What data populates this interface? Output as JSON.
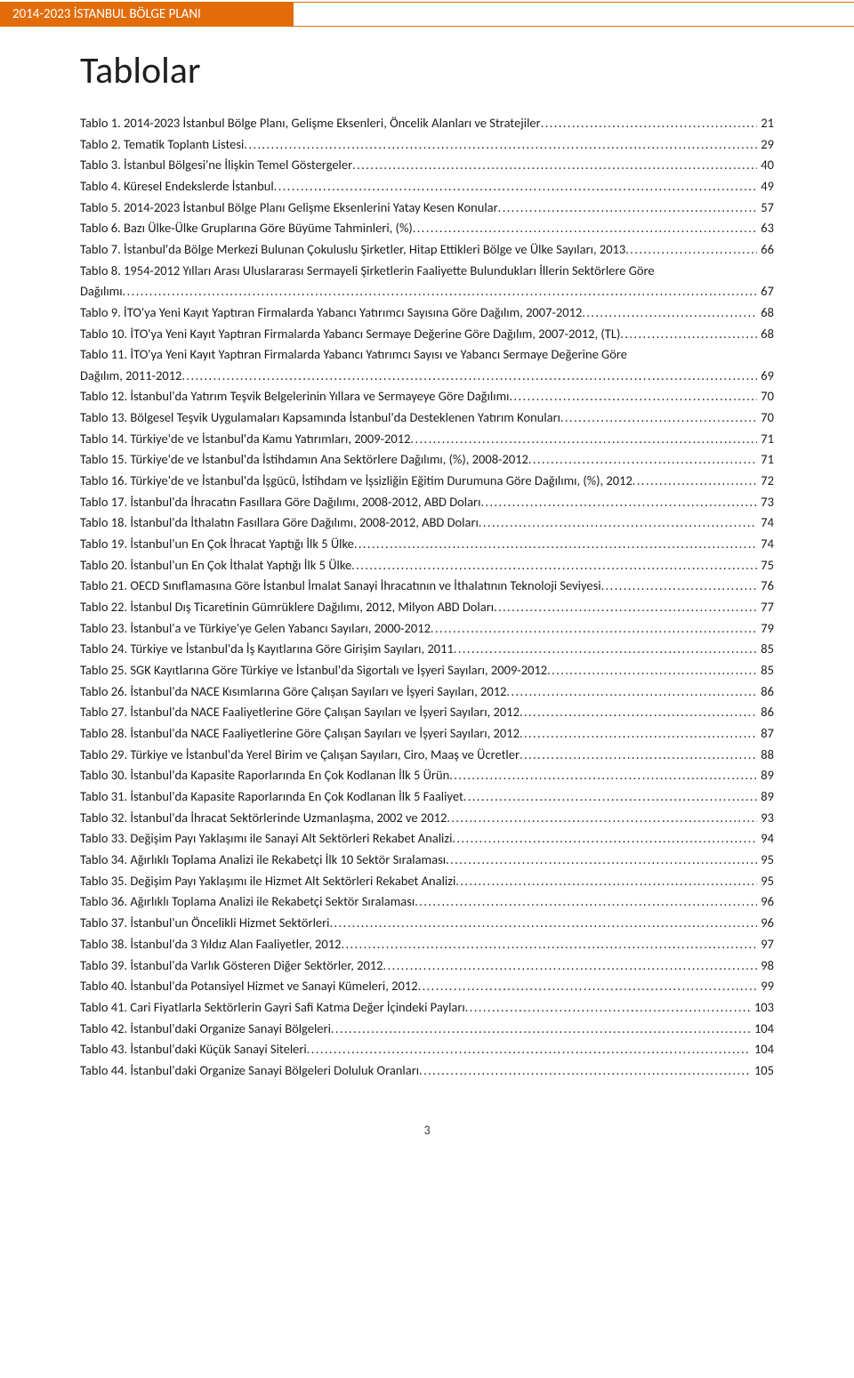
{
  "header": {
    "title": "2014-2023 İSTANBUL BÖLGE PLANI"
  },
  "main_title": "Tablolar",
  "page_number": "3",
  "colors": {
    "header_bg": "#e36c0a",
    "header_text": "#ffffff",
    "body_text": "#1a1a1a",
    "background": "#ffffff"
  },
  "toc": [
    {
      "label": "Tablo 1. 2014-2023 İstanbul Bölge Planı, Gelişme Eksenleri, Öncelik Alanları ve Stratejiler",
      "page": "21"
    },
    {
      "label": "Tablo 2. Tematik Toplantı Listesi",
      "page": "29"
    },
    {
      "label": "Tablo 3. İstanbul Bölgesi'ne İlişkin Temel Göstergeler",
      "page": "40"
    },
    {
      "label": "Tablo 4. Küresel Endekslerde İstanbul",
      "page": "49"
    },
    {
      "label": "Tablo 5. 2014-2023 İstanbul Bölge Planı Gelişme Eksenlerini Yatay Kesen Konular",
      "page": "57"
    },
    {
      "label": "Tablo 6. Bazı Ülke-Ülke Gruplarına Göre Büyüme Tahminleri, (%)",
      "page": "63"
    },
    {
      "label": "Tablo 7. İstanbul'da Bölge Merkezi Bulunan Çokuluslu Şirketler, Hitap Ettikleri Bölge ve Ülke Sayıları, 2013",
      "page": "66"
    },
    {
      "label_pre": "Tablo 8. 1954-2012 Yılları Arası Uluslararası Sermayeli Şirketlerin Faaliyette Bulundukları İllerin Sektörlere Göre",
      "label": "Dağılımı",
      "page": "67",
      "multiline": true
    },
    {
      "label": "Tablo 9. İTO'ya Yeni Kayıt Yaptıran Firmalarda Yabancı Yatırımcı Sayısına Göre Dağılım, 2007-2012",
      "page": "68"
    },
    {
      "label": "Tablo 10. İTO'ya Yeni Kayıt Yaptıran Firmalarda Yabancı Sermaye Değerine Göre Dağılım, 2007-2012, (TL)",
      "page": "68"
    },
    {
      "label_pre": "Tablo 11. İTO'ya Yeni Kayıt Yaptıran Firmalarda Yabancı Yatırımcı Sayısı ve Yabancı Sermaye Değerine Göre",
      "label": "Dağılım, 2011-2012",
      "page": "69",
      "multiline": true
    },
    {
      "label": "Tablo 12. İstanbul'da Yatırım Teşvik Belgelerinin Yıllara ve Sermayeye Göre Dağılımı",
      "page": "70"
    },
    {
      "label": "Tablo 13. Bölgesel Teşvik Uygulamaları Kapsamında İstanbul'da Desteklenen Yatırım Konuları",
      "page": "70"
    },
    {
      "label": "Tablo 14. Türkiye'de ve İstanbul'da Kamu Yatırımları, 2009-2012",
      "page": "71"
    },
    {
      "label": "Tablo 15. Türkiye'de ve İstanbul'da İstihdamın Ana Sektörlere Dağılımı, (%), 2008-2012",
      "page": "71"
    },
    {
      "label": "Tablo 16. Türkiye'de ve İstanbul'da İşgücü, İstihdam ve İşsizliğin Eğitim Durumuna Göre Dağılımı, (%), 2012",
      "page": "72"
    },
    {
      "label": "Tablo 17. İstanbul'da İhracatın Fasıllara Göre Dağılımı, 2008-2012, ABD Doları",
      "page": "73"
    },
    {
      "label": "Tablo 18. İstanbul'da İthalatın Fasıllara Göre Dağılımı, 2008-2012, ABD Doları",
      "page": "74"
    },
    {
      "label": "Tablo 19. İstanbul'un En Çok İhracat Yaptığı İlk 5 Ülke",
      "page": "74"
    },
    {
      "label": "Tablo 20. İstanbul'un En Çok İthalat Yaptığı İlk 5 Ülke",
      "page": "75"
    },
    {
      "label": "Tablo 21. OECD Sınıflamasına Göre İstanbul İmalat Sanayi İhracatının ve İthalatının Teknoloji Seviyesi",
      "page": "76"
    },
    {
      "label": "Tablo 22. İstanbul Dış Ticaretinin Gümrüklere Dağılımı, 2012, Milyon ABD Doları",
      "page": "77"
    },
    {
      "label": "Tablo 23. İstanbul'a ve Türkiye'ye Gelen Yabancı Sayıları, 2000-2012",
      "page": "79"
    },
    {
      "label": "Tablo 24. Türkiye ve İstanbul'da İş Kayıtlarına Göre Girişim Sayıları, 2011",
      "page": "85"
    },
    {
      "label": "Tablo 25. SGK Kayıtlarına Göre Türkiye ve İstanbul'da Sigortalı ve İşyeri Sayıları, 2009-2012",
      "page": "85"
    },
    {
      "label": "Tablo 26. İstanbul'da NACE Kısımlarına Göre Çalışan Sayıları ve İşyeri Sayıları, 2012",
      "page": "86"
    },
    {
      "label": "Tablo 27. İstanbul'da NACE Faaliyetlerine Göre Çalışan Sayıları ve İşyeri Sayıları, 2012",
      "page": "86"
    },
    {
      "label": "Tablo 28. İstanbul'da NACE Faaliyetlerine Göre Çalışan Sayıları ve İşyeri Sayıları, 2012",
      "page": "87"
    },
    {
      "label": "Tablo 29. Türkiye ve İstanbul'da Yerel Birim ve Çalışan Sayıları, Ciro, Maaş ve Ücretler",
      "page": "88"
    },
    {
      "label": "Tablo 30. İstanbul'da Kapasite Raporlarında En Çok Kodlanan İlk 5 Ürün",
      "page": "89"
    },
    {
      "label": "Tablo 31. İstanbul'da Kapasite Raporlarında En Çok Kodlanan İlk 5 Faaliyet",
      "page": "89"
    },
    {
      "label": "Tablo 32. İstanbul'da İhracat Sektörlerinde Uzmanlaşma, 2002 ve 2012",
      "page": "93"
    },
    {
      "label": "Tablo 33. Değişim Payı Yaklaşımı ile Sanayi Alt Sektörleri Rekabet Analizi",
      "page": "94"
    },
    {
      "label": "Tablo 34. Ağırlıklı Toplama Analizi ile Rekabetçi İlk 10 Sektör Sıralaması",
      "page": "95"
    },
    {
      "label": "Tablo 35. Değişim Payı Yaklaşımı ile Hizmet Alt Sektörleri Rekabet Analizi",
      "page": "95"
    },
    {
      "label": "Tablo 36. Ağırlıklı Toplama Analizi ile Rekabetçi Sektör Sıralaması",
      "page": "96"
    },
    {
      "label": "Tablo 37. İstanbul'un Öncelikli Hizmet Sektörleri",
      "page": "96"
    },
    {
      "label": "Tablo 38. İstanbul'da 3 Yıldız Alan Faaliyetler, 2012",
      "page": "97"
    },
    {
      "label": "Tablo 39. İstanbul'da Varlık Gösteren Diğer Sektörler, 2012",
      "page": "98"
    },
    {
      "label": "Tablo 40. İstanbul'da Potansiyel Hizmet ve Sanayi Kümeleri, 2012",
      "page": "99"
    },
    {
      "label": "Tablo 41. Cari Fiyatlarla Sektörlerin Gayri Safi Katma Değer İçindeki Payları",
      "page": "103"
    },
    {
      "label": "Tablo 42. İstanbul'daki Organize Sanayi Bölgeleri",
      "page": "104"
    },
    {
      "label": "Tablo 43. İstanbul'daki Küçük Sanayi Siteleri",
      "page": "104"
    },
    {
      "label": "Tablo 44. İstanbul'daki Organize Sanayi Bölgeleri Doluluk Oranları",
      "page": "105"
    }
  ]
}
